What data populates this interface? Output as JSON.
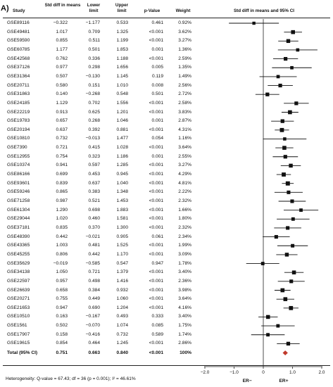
{
  "panel_label": "A)",
  "headers": {
    "study": "Study",
    "std_diff": "Std diff in means",
    "lower": "Lower limit",
    "upper": "Upper limit",
    "pvalue": "p-Value",
    "weight": "Weight",
    "plot_title": "Std diff in means and 95% CI"
  },
  "chart_data": {
    "type": "forest",
    "title": "Std diff in means and 95% CI",
    "xlim": [
      -2.0,
      2.0
    ],
    "x_ticks": [
      "−2.0",
      "−1.0",
      "0",
      "1.0",
      "2.0"
    ],
    "x_tick_values": [
      -2,
      -1,
      0,
      1,
      2
    ],
    "xlabel_left": "ER−",
    "xlabel_right": "ER+",
    "rows": [
      {
        "study": "GSE89116",
        "std": "−0.322",
        "lower": "−1.177",
        "upper": "0.533",
        "p": "0.461",
        "weight": "0.92%",
        "v": -0.322,
        "lo": -1.177,
        "hi": 0.533
      },
      {
        "study": "GSE49481",
        "std": "1.017",
        "lower": "0.709",
        "upper": "1.325",
        "p": "<0.001",
        "weight": "3.62%",
        "v": 1.017,
        "lo": 0.709,
        "hi": 1.325
      },
      {
        "study": "GSE59590",
        "std": "0.855",
        "lower": "0.511",
        "upper": "1.199",
        "p": "<0.001",
        "weight": "3.27%",
        "v": 0.855,
        "lo": 0.511,
        "hi": 1.199
      },
      {
        "study": "GSE60785",
        "std": "1.177",
        "lower": "0.501",
        "upper": "1.853",
        "p": "0.001",
        "weight": "1.36%",
        "v": 1.177,
        "lo": 0.501,
        "hi": 1.853
      },
      {
        "study": "GSE42568",
        "std": "0.762",
        "lower": "0.336",
        "upper": "1.188",
        "p": "<0.001",
        "weight": "2.59%",
        "v": 0.762,
        "lo": 0.336,
        "hi": 1.188
      },
      {
        "study": "GSE37126",
        "std": "0.977",
        "lower": "0.298",
        "upper": "1.656",
        "p": "0.005",
        "weight": "1.35%",
        "v": 0.977,
        "lo": 0.298,
        "hi": 1.656
      },
      {
        "study": "GSE31364",
        "std": "0.507",
        "lower": "−0.130",
        "upper": "1.145",
        "p": "0.119",
        "weight": "1.49%",
        "v": 0.507,
        "lo": -0.13,
        "hi": 1.145
      },
      {
        "study": "GSE20711",
        "std": "0.580",
        "lower": "0.151",
        "upper": "1.010",
        "p": "0.008",
        "weight": "2.56%",
        "v": 0.58,
        "lo": 0.151,
        "hi": 1.01
      },
      {
        "study": "GSE31863",
        "std": "0.140",
        "lower": "−0.268",
        "upper": "0.548",
        "p": "0.501",
        "weight": "2.72%",
        "v": 0.14,
        "lo": -0.268,
        "hi": 0.548
      },
      {
        "study": "GSE24185",
        "std": "1.129",
        "lower": "0.702",
        "upper": "1.556",
        "p": "<0.001",
        "weight": "2.58%",
        "v": 1.129,
        "lo": 0.702,
        "hi": 1.556
      },
      {
        "study": "GSE22219",
        "std": "0.913",
        "lower": "0.625",
        "upper": "1.201",
        "p": "<0.001",
        "weight": "3.83%",
        "v": 0.913,
        "lo": 0.625,
        "hi": 1.201
      },
      {
        "study": "GSE19783",
        "std": "0.657",
        "lower": "0.268",
        "upper": "1.046",
        "p": "0.001",
        "weight": "2.87%",
        "v": 0.657,
        "lo": 0.268,
        "hi": 1.046
      },
      {
        "study": "GSE20194",
        "std": "0.637",
        "lower": "0.392",
        "upper": "0.881",
        "p": "<0.001",
        "weight": "4.31%",
        "v": 0.637,
        "lo": 0.392,
        "hi": 0.881
      },
      {
        "study": "GSE10810",
        "std": "0.732",
        "lower": "−0.013",
        "upper": "1.477",
        "p": "0.054",
        "weight": "1.16%",
        "v": 0.732,
        "lo": -0.013,
        "hi": 1.477
      },
      {
        "study": "GSE7390",
        "std": "0.721",
        "lower": "0.415",
        "upper": "1.028",
        "p": "<0.001",
        "weight": "3.64%",
        "v": 0.721,
        "lo": 0.415,
        "hi": 1.028
      },
      {
        "study": "GSE12955",
        "std": "0.754",
        "lower": "0.323",
        "upper": "1.186",
        "p": "0.001",
        "weight": "2.55%",
        "v": 0.754,
        "lo": 0.323,
        "hi": 1.186
      },
      {
        "study": "GSE10374",
        "std": "0.941",
        "lower": "0.597",
        "upper": "1.285",
        "p": "<0.001",
        "weight": "3.27%",
        "v": 0.941,
        "lo": 0.597,
        "hi": 1.285
      },
      {
        "study": "GSE86166",
        "std": "0.699",
        "lower": "0.453",
        "upper": "0.945",
        "p": "<0.001",
        "weight": "4.29%",
        "v": 0.699,
        "lo": 0.453,
        "hi": 0.945
      },
      {
        "study": "GSE93601",
        "std": "0.839",
        "lower": "0.637",
        "upper": "1.040",
        "p": "<0.001",
        "weight": "4.81%",
        "v": 0.839,
        "lo": 0.637,
        "hi": 1.04
      },
      {
        "study": "GSE59246",
        "std": "0.865",
        "lower": "0.383",
        "upper": "1.348",
        "p": "<0.001",
        "weight": "2.22%",
        "v": 0.865,
        "lo": 0.383,
        "hi": 1.348
      },
      {
        "study": "GSE71258",
        "std": "0.987",
        "lower": "0.521",
        "upper": "1.453",
        "p": "<0.001",
        "weight": "2.32%",
        "v": 0.987,
        "lo": 0.521,
        "hi": 1.453
      },
      {
        "study": "GSE61304",
        "std": "1.290",
        "lower": "0.698",
        "upper": "1.883",
        "p": "<0.001",
        "weight": "1.66%",
        "v": 1.29,
        "lo": 0.698,
        "hi": 1.883
      },
      {
        "study": "GSE29044",
        "std": "1.020",
        "lower": "0.460",
        "upper": "1.581",
        "p": "<0.001",
        "weight": "1.80%",
        "v": 1.02,
        "lo": 0.46,
        "hi": 1.581
      },
      {
        "study": "GSE37181",
        "std": "0.835",
        "lower": "0.370",
        "upper": "1.300",
        "p": "<0.001",
        "weight": "2.32%",
        "v": 0.835,
        "lo": 0.37,
        "hi": 1.3
      },
      {
        "study": "GSE48390",
        "std": "0.442",
        "lower": "−0.021",
        "upper": "0.905",
        "p": "0.061",
        "weight": "2.34%",
        "v": 0.442,
        "lo": -0.021,
        "hi": 0.905
      },
      {
        "study": "GSE43365",
        "std": "1.003",
        "lower": "0.481",
        "upper": "1.525",
        "p": "<0.001",
        "weight": "1.99%",
        "v": 1.003,
        "lo": 0.481,
        "hi": 1.525
      },
      {
        "study": "GSE45255",
        "std": "0.806",
        "lower": "0.442",
        "upper": "1.170",
        "p": "<0.001",
        "weight": "3.09%",
        "v": 0.806,
        "lo": 0.442,
        "hi": 1.17
      },
      {
        "study": "GSE35629",
        "std": "−0.019",
        "lower": "−0.585",
        "upper": "0.547",
        "p": "0.947",
        "weight": "1.78%",
        "v": -0.019,
        "lo": -0.585,
        "hi": 0.547
      },
      {
        "study": "GSE34138",
        "std": "1.050",
        "lower": "0.721",
        "upper": "1.379",
        "p": "<0.001",
        "weight": "3.40%",
        "v": 1.05,
        "lo": 0.721,
        "hi": 1.379
      },
      {
        "study": "GSE22597",
        "std": "0.957",
        "lower": "0.498",
        "upper": "1.416",
        "p": "<0.001",
        "weight": "2.36%",
        "v": 0.957,
        "lo": 0.498,
        "hi": 1.416
      },
      {
        "study": "GSE26639",
        "std": "0.658",
        "lower": "0.384",
        "upper": "0.932",
        "p": "<0.001",
        "weight": "3.98%",
        "v": 0.658,
        "lo": 0.384,
        "hi": 0.932
      },
      {
        "study": "GSE20271",
        "std": "0.755",
        "lower": "0.449",
        "upper": "1.060",
        "p": "<0.001",
        "weight": "3.64%",
        "v": 0.755,
        "lo": 0.449,
        "hi": 1.06
      },
      {
        "study": "GSE21653",
        "std": "0.947",
        "lower": "0.690",
        "upper": "1.204",
        "p": "<0.001",
        "weight": "4.16%",
        "v": 0.947,
        "lo": 0.69,
        "hi": 1.204
      },
      {
        "study": "GSE10510",
        "std": "0.163",
        "lower": "−0.167",
        "upper": "0.493",
        "p": "0.333",
        "weight": "3.40%",
        "v": 0.163,
        "lo": -0.167,
        "hi": 0.493
      },
      {
        "study": "GSE1561",
        "std": "0.502",
        "lower": "−0.070",
        "upper": "1.074",
        "p": "0.085",
        "weight": "1.75%",
        "v": 0.502,
        "lo": -0.07,
        "hi": 1.074
      },
      {
        "study": "GSE17907",
        "std": "0.158",
        "lower": "−0.416",
        "upper": "0.732",
        "p": "0.589",
        "weight": "1.74%",
        "v": 0.158,
        "lo": -0.416,
        "hi": 0.732
      },
      {
        "study": "GSE19615",
        "std": "0.854",
        "lower": "0.464",
        "upper": "1.245",
        "p": "<0.001",
        "weight": "2.86%",
        "v": 0.854,
        "lo": 0.464,
        "hi": 1.245
      }
    ],
    "total": {
      "study": "Total (95% CI)",
      "std": "0.751",
      "lower": "0.663",
      "upper": "0.840",
      "p": "<0.001",
      "weight": "100%",
      "v": 0.751,
      "lo": 0.663,
      "hi": 0.84
    },
    "colors": {
      "marker": "#111111",
      "total_diamond": "#c0392b"
    }
  },
  "footnote": "Heterogeneity: Q-value = 67.43; df = 36 (p = 0.001); I² = 46.61%"
}
